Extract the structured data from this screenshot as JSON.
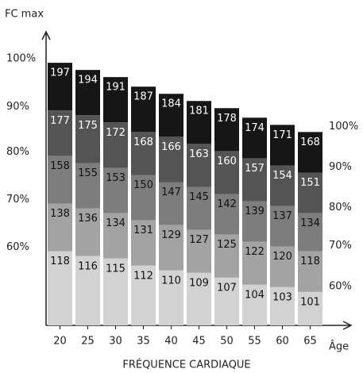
{
  "chart_data": {
    "type": "zones",
    "title": "FRÉQUENCE CARDIAQUE",
    "y_label": "FC max",
    "x_label": "Âge",
    "categories": [
      20,
      25,
      30,
      35,
      40,
      45,
      50,
      55,
      60,
      65
    ],
    "series": [
      {
        "name": "100%",
        "color": "#161616",
        "values": [
          197,
          194,
          191,
          187,
          184,
          181,
          178,
          174,
          171,
          168
        ]
      },
      {
        "name": "90%",
        "color": "#545454",
        "values": [
          177,
          175,
          172,
          168,
          166,
          163,
          160,
          157,
          154,
          151
        ]
      },
      {
        "name": "80%",
        "color": "#7d7d7d",
        "values": [
          158,
          155,
          153,
          150,
          147,
          145,
          142,
          139,
          137,
          134
        ]
      },
      {
        "name": "70%",
        "color": "#a3a3a3",
        "values": [
          138,
          136,
          134,
          131,
          129,
          127,
          125,
          122,
          120,
          118
        ]
      },
      {
        "name": "60%",
        "color": "#d2d2d2",
        "values": [
          118,
          116,
          115,
          112,
          110,
          109,
          107,
          104,
          103,
          101
        ]
      }
    ],
    "ylim": [
      87,
      210
    ]
  }
}
